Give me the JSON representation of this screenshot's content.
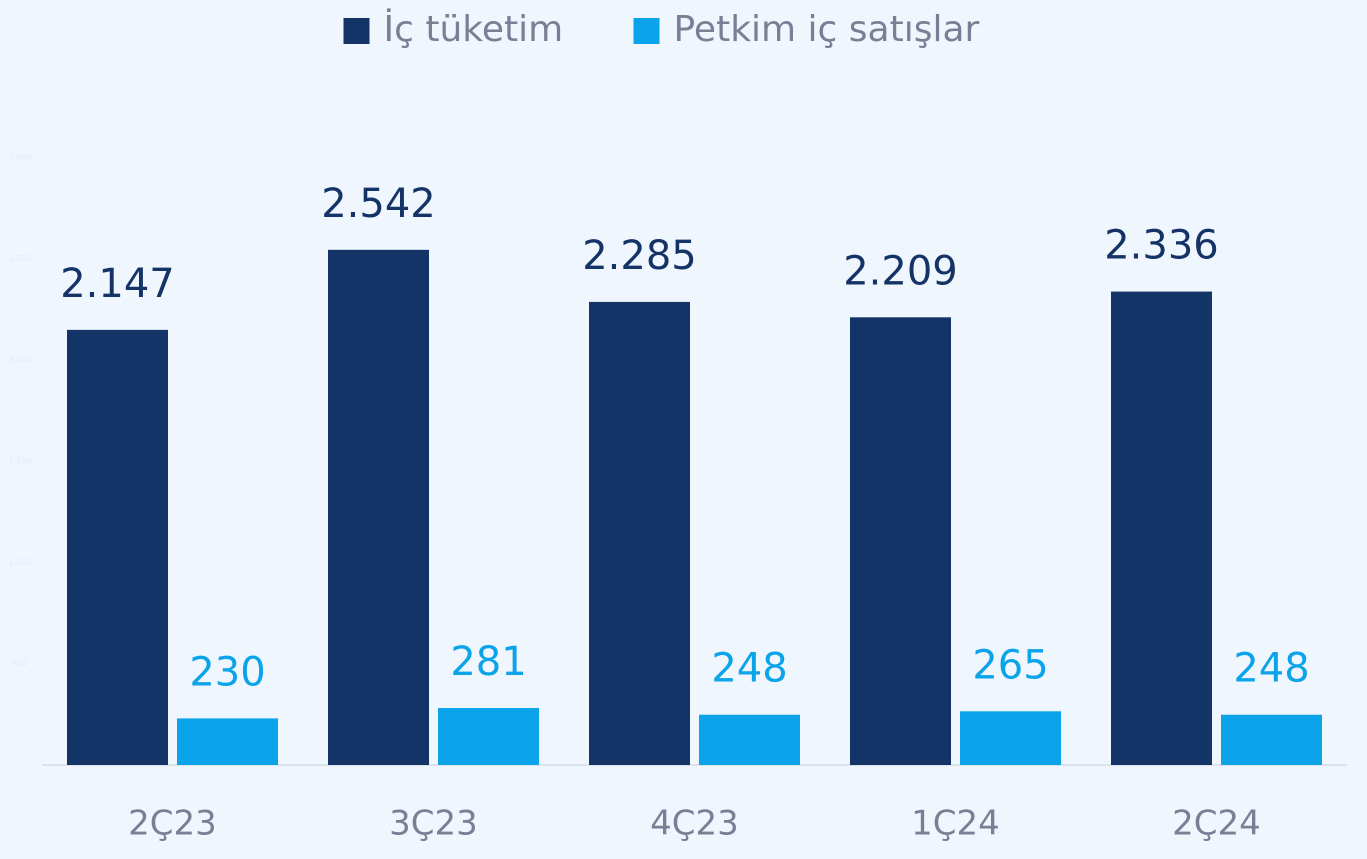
{
  "chart_data": {
    "type": "bar",
    "categories": [
      "2Ç23",
      "3Ç23",
      "4Ç23",
      "1Ç24",
      "2Ç24"
    ],
    "series": [
      {
        "name": "İç tüketim",
        "color": "#143366",
        "values": [
          2147,
          2542,
          2285,
          2209,
          2336
        ],
        "value_labels": [
          "2.147",
          "2.542",
          "2.285",
          "2.209",
          "2.336"
        ]
      },
      {
        "name": "Petkim iç satışlar",
        "color": "#0ba3ea",
        "values": [
          230,
          281,
          248,
          265,
          248
        ]
      }
    ],
    "ylim": [
      0,
      3000
    ],
    "yticks": [
      {
        "value": 500,
        "label": "500"
      },
      {
        "value": 1000,
        "label": "1.000"
      },
      {
        "value": 1500,
        "label": "1.500"
      },
      {
        "value": 2000,
        "label": "2.000"
      },
      {
        "value": 2500,
        "label": "2.500"
      },
      {
        "value": 3000,
        "label": "3.000"
      }
    ],
    "legend": "top"
  }
}
